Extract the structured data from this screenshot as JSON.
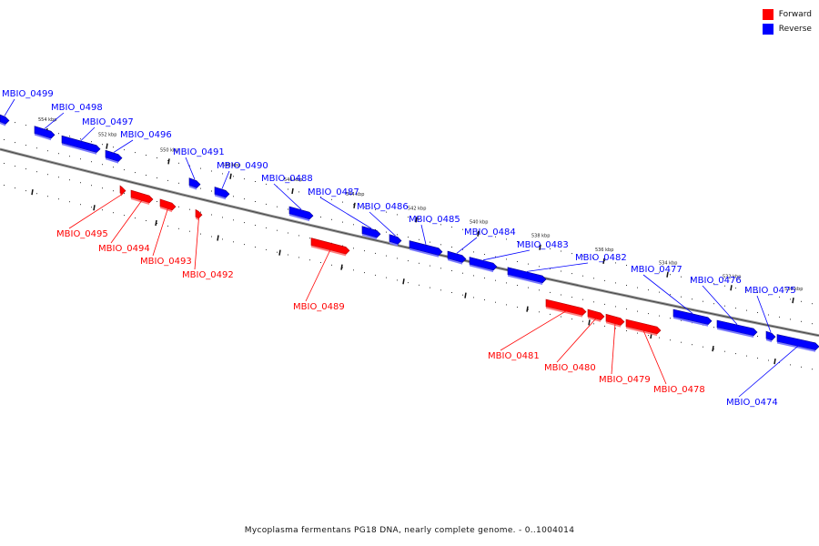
{
  "legend": {
    "forward": {
      "label": "Forward",
      "color": "#ff0000"
    },
    "reverse": {
      "label": "Reverse",
      "color": "#0000ff"
    }
  },
  "caption": "Mycoplasma fermentans PG18 DNA, nearly complete genome. - 0..1004014",
  "backbone_ticks": [
    "554 kbp",
    "552 kbp",
    "550 kbp",
    "548 kbp",
    "546 kbp",
    "544 kbp",
    "542 kbp",
    "540 kbp",
    "538 kbp",
    "536 kbp",
    "534 kbp",
    "532 kbp",
    "530 kbp"
  ],
  "genes": [
    {
      "name": "MBIO_0499",
      "strand": "reverse"
    },
    {
      "name": "MBIO_0498",
      "strand": "reverse"
    },
    {
      "name": "MBIO_0497",
      "strand": "reverse"
    },
    {
      "name": "MBIO_0496",
      "strand": "reverse"
    },
    {
      "name": "MBIO_0495",
      "strand": "forward"
    },
    {
      "name": "MBIO_0494",
      "strand": "forward"
    },
    {
      "name": "MBIO_0493",
      "strand": "forward"
    },
    {
      "name": "MBIO_0492",
      "strand": "forward"
    },
    {
      "name": "MBIO_0491",
      "strand": "reverse"
    },
    {
      "name": "MBIO_0490",
      "strand": "reverse"
    },
    {
      "name": "MBIO_0489",
      "strand": "forward"
    },
    {
      "name": "MBIO_0488",
      "strand": "reverse"
    },
    {
      "name": "MBIO_0487",
      "strand": "reverse"
    },
    {
      "name": "MBIO_0486",
      "strand": "reverse"
    },
    {
      "name": "MBIO_0485",
      "strand": "reverse"
    },
    {
      "name": "MBIO_0484",
      "strand": "reverse"
    },
    {
      "name": "MBIO_0483",
      "strand": "reverse"
    },
    {
      "name": "MBIO_0482",
      "strand": "reverse"
    },
    {
      "name": "MBIO_0481",
      "strand": "forward"
    },
    {
      "name": "MBIO_0480",
      "strand": "forward"
    },
    {
      "name": "MBIO_0479",
      "strand": "forward"
    },
    {
      "name": "MBIO_0478",
      "strand": "forward"
    },
    {
      "name": "MBIO_0477",
      "strand": "reverse"
    },
    {
      "name": "MBIO_0476",
      "strand": "reverse"
    },
    {
      "name": "MBIO_0475",
      "strand": "reverse"
    },
    {
      "name": "MBIO_0474",
      "strand": "reverse"
    }
  ]
}
